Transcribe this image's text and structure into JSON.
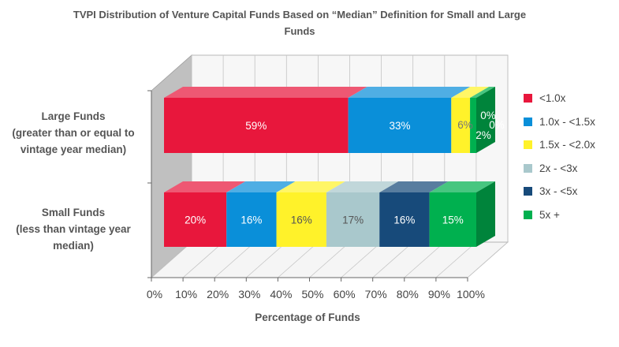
{
  "chart_data": {
    "type": "bar",
    "stacked": true,
    "horizontal": true,
    "three_d": true,
    "title": "TVPI Distribution of Venture Capital Funds Based on “Median” Definition for Small and Large Funds",
    "xlabel": "Percentage of Funds",
    "ylabel": "",
    "xlim": [
      0,
      100
    ],
    "x_ticks": [
      "0%",
      "10%",
      "20%",
      "30%",
      "40%",
      "50%",
      "60%",
      "70%",
      "80%",
      "90%",
      "100%"
    ],
    "categories": [
      "Large Funds (greater than or equal to vintage year median)",
      "Small Funds (less than vintage year median)"
    ],
    "category_label_lines": [
      [
        "Large Funds",
        "(greater than or equal to",
        "vintage year median)"
      ],
      [
        "Small Funds",
        "(less than vintage year",
        "median)"
      ]
    ],
    "series": [
      {
        "name": "<1.0x",
        "values": [
          59,
          20
        ],
        "data_labels": [
          "59%",
          "20%"
        ],
        "color": "#e8173c"
      },
      {
        "name": "1.0x - <1.5x",
        "values": [
          33,
          16
        ],
        "data_labels": [
          "33%",
          "16%"
        ],
        "color": "#0a8fd9"
      },
      {
        "name": "1.5x - <2.0x",
        "values": [
          6,
          16
        ],
        "data_labels": [
          "6%",
          "16%"
        ],
        "color": "#fff22a"
      },
      {
        "name": "2x - <3x",
        "values": [
          0,
          17
        ],
        "data_labels": [
          "0%",
          "17%"
        ],
        "color": "#a9c8cc"
      },
      {
        "name": "3x - <5x",
        "values": [
          0,
          16
        ],
        "data_labels": [
          "0%",
          "16%"
        ],
        "color": "#174a7a"
      },
      {
        "name": "5x +",
        "values": [
          2,
          15
        ],
        "data_labels": [
          "2%",
          "15%"
        ],
        "color": "#00b04f"
      }
    ],
    "legend_position": "right",
    "grid": true
  }
}
